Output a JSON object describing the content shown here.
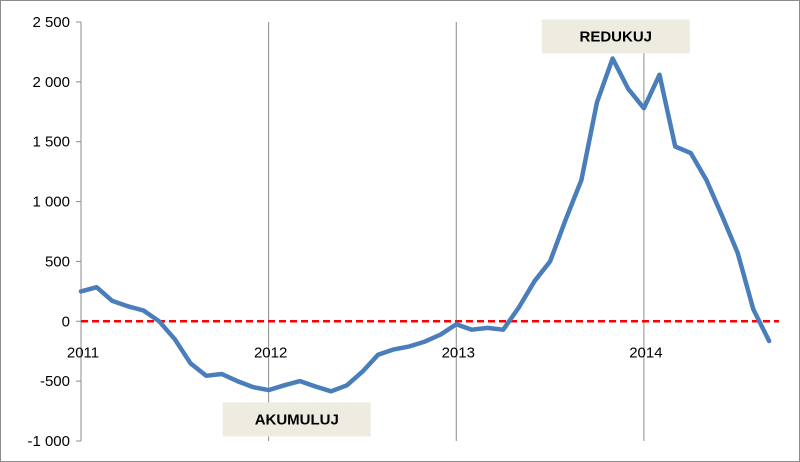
{
  "chart_data": {
    "type": "line",
    "title": "",
    "xlabel": "",
    "ylabel": "",
    "xlim": [
      2011.0,
      2014.72
    ],
    "ylim": [
      -1000,
      2500
    ],
    "yticks": [
      2500,
      2000,
      1500,
      1000,
      500,
      0,
      -500,
      -1000
    ],
    "ytick_labels": [
      "2 500",
      "2 000",
      "1 500",
      "1 000",
      "500",
      "0",
      "-500",
      "-1 000"
    ],
    "xticks": [
      2011,
      2012,
      2013,
      2014
    ],
    "xtick_labels": [
      "2011",
      "2012",
      "2013",
      "2014"
    ],
    "grid": "vertical-major",
    "legend": "none",
    "reference_line": {
      "y": 0,
      "color": "#ff0000",
      "style": "dashed"
    },
    "series": [
      {
        "color": "#4a7ebb",
        "x": [
          2011.0,
          2011.083,
          2011.167,
          2011.25,
          2011.333,
          2011.417,
          2011.5,
          2011.583,
          2011.667,
          2011.75,
          2011.833,
          2011.917,
          2012.0,
          2012.083,
          2012.167,
          2012.25,
          2012.333,
          2012.417,
          2012.5,
          2012.583,
          2012.667,
          2012.75,
          2012.833,
          2012.917,
          2013.0,
          2013.083,
          2013.167,
          2013.25,
          2013.333,
          2013.417,
          2013.5,
          2013.583,
          2013.667,
          2013.75,
          2013.833,
          2013.917,
          2014.0,
          2014.083,
          2014.167,
          2014.25,
          2014.333,
          2014.417,
          2014.5,
          2014.583,
          2014.667
        ],
        "y": [
          250,
          285,
          170,
          125,
          90,
          0,
          -150,
          -350,
          -455,
          -440,
          -500,
          -550,
          -575,
          -535,
          -500,
          -545,
          -585,
          -535,
          -420,
          -280,
          -235,
          -210,
          -170,
          -110,
          -25,
          -70,
          -55,
          -70,
          115,
          335,
          500,
          850,
          1180,
          1830,
          2195,
          1940,
          1780,
          2060,
          1460,
          1405,
          1180,
          880,
          570,
          100,
          -165
        ]
      }
    ],
    "annotations": [
      {
        "text": "REDUKUJ",
        "x": 2013.85,
        "y": 2380
      },
      {
        "text": "AKUMULUJ",
        "x": 2012.15,
        "y": -820
      }
    ]
  },
  "colors": {
    "background": "#ffffff",
    "frame": "#8c8c8c",
    "axis": "#8c8c8c",
    "grid": "#8c8c8c",
    "line": "#4a7ebb",
    "zero_line": "#ff0000",
    "annotation_box": "#eeece1"
  }
}
